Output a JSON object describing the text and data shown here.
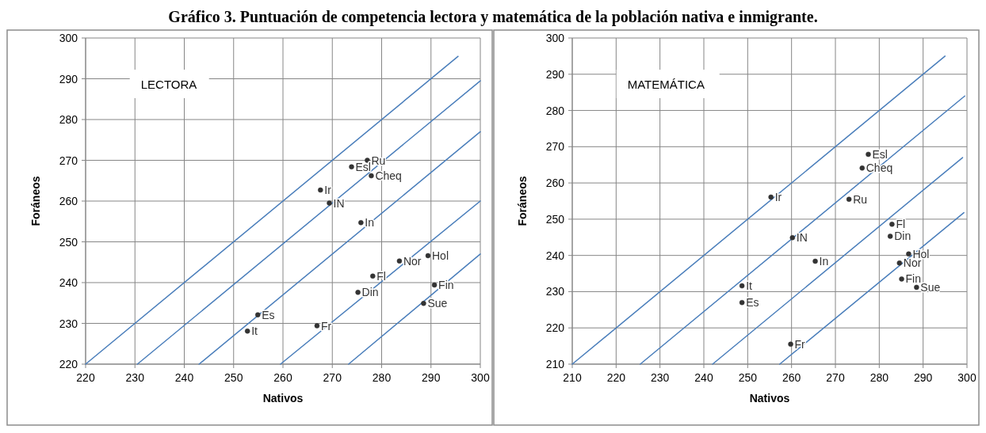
{
  "chart_data": [
    {
      "type": "scatter",
      "title": "Gráfico 3. Puntuación de competencia lectora y matemática de la población nativa e inmigrante.",
      "xlabel": "Nativos",
      "ylabel": "Foráneos",
      "annotations": [
        "LECTORA"
      ],
      "xlim": [
        220,
        300
      ],
      "ylim": [
        220,
        300
      ],
      "xticks": [
        220,
        230,
        240,
        250,
        260,
        270,
        280,
        290,
        300
      ],
      "yticks": [
        220,
        230,
        240,
        250,
        260,
        270,
        280,
        290,
        300
      ],
      "grid": true,
      "legend": false,
      "marker": "circle",
      "series": [
        {
          "type": "line",
          "marker": "none",
          "color": "#4a7ebb",
          "x": [
            220,
            295.5
          ],
          "values": [
            220,
            295.5
          ]
        },
        {
          "type": "line",
          "marker": "none",
          "color": "#4a7ebb",
          "x": [
            230.5,
            300
          ],
          "values": [
            220,
            289.5
          ]
        },
        {
          "type": "line",
          "marker": "none",
          "color": "#4a7ebb",
          "x": [
            243,
            300
          ],
          "values": [
            220,
            277
          ]
        },
        {
          "type": "line",
          "marker": "none",
          "color": "#4a7ebb",
          "x": [
            259.5,
            300
          ],
          "values": [
            220,
            260
          ]
        },
        {
          "type": "line",
          "marker": "none",
          "color": "#4a7ebb",
          "x": [
            273.3,
            300
          ],
          "values": [
            220,
            247
          ]
        },
        {
          "name": "Ru",
          "color": "#333333",
          "x": [
            277.1
          ],
          "values": [
            270.0
          ]
        },
        {
          "name": "Esl",
          "color": "#333333",
          "x": [
            273.9
          ],
          "values": [
            268.4
          ]
        },
        {
          "name": "Cheq",
          "color": "#333333",
          "x": [
            277.9
          ],
          "values": [
            266.2
          ]
        },
        {
          "name": "Ir",
          "color": "#333333",
          "x": [
            267.6
          ],
          "values": [
            262.7
          ]
        },
        {
          "name": "IN",
          "color": "#333333",
          "x": [
            269.4
          ],
          "values": [
            259.5
          ]
        },
        {
          "name": "In",
          "color": "#333333",
          "x": [
            275.8
          ],
          "values": [
            254.7
          ]
        },
        {
          "name": "Nor",
          "color": "#333333",
          "x": [
            283.6
          ],
          "values": [
            245.3
          ]
        },
        {
          "name": "Hol",
          "color": "#333333",
          "x": [
            289.4
          ],
          "values": [
            246.6
          ]
        },
        {
          "name": "Fl",
          "color": "#333333",
          "x": [
            278.2
          ],
          "values": [
            241.6
          ]
        },
        {
          "name": "Din",
          "color": "#333333",
          "x": [
            275.2
          ],
          "values": [
            237.6
          ]
        },
        {
          "name": "Fin",
          "color": "#333333",
          "x": [
            290.7
          ],
          "values": [
            239.4
          ]
        },
        {
          "name": "Sue",
          "color": "#333333",
          "x": [
            288.5
          ],
          "values": [
            234.9
          ]
        },
        {
          "name": "Es",
          "color": "#333333",
          "x": [
            254.9
          ],
          "values": [
            232.1
          ]
        },
        {
          "name": "It",
          "color": "#333333",
          "x": [
            252.8
          ],
          "values": [
            228.1
          ]
        },
        {
          "name": "Fr",
          "color": "#333333",
          "x": [
            266.9
          ],
          "values": [
            229.4
          ]
        }
      ]
    },
    {
      "type": "scatter",
      "xlabel": "Nativos",
      "ylabel": "Foráneos",
      "annotations": [
        "MATEMÁTICA"
      ],
      "xlim": [
        210,
        300
      ],
      "ylim": [
        210,
        300
      ],
      "xticks": [
        210,
        220,
        230,
        240,
        250,
        260,
        270,
        280,
        290,
        300
      ],
      "yticks": [
        210,
        220,
        230,
        240,
        250,
        260,
        270,
        280,
        290,
        300
      ],
      "grid": true,
      "legend": false,
      "marker": "circle",
      "series": [
        {
          "type": "line",
          "marker": "none",
          "color": "#4a7ebb",
          "x": [
            210,
            295
          ],
          "values": [
            210,
            295
          ]
        },
        {
          "type": "line",
          "marker": "none",
          "color": "#4a7ebb",
          "x": [
            225.5,
            299.5
          ],
          "values": [
            210,
            284
          ]
        },
        {
          "type": "line",
          "marker": "none",
          "color": "#4a7ebb",
          "x": [
            242,
            299
          ],
          "values": [
            210,
            267
          ]
        },
        {
          "type": "line",
          "marker": "none",
          "color": "#4a7ebb",
          "x": [
            257.3,
            299.3
          ],
          "values": [
            210,
            251.8
          ]
        },
        {
          "name": "Esl",
          "color": "#333333",
          "x": [
            277.5
          ],
          "values": [
            267.9
          ]
        },
        {
          "name": "Cheq",
          "color": "#333333",
          "x": [
            276.1
          ],
          "values": [
            264.1
          ]
        },
        {
          "name": "Ir",
          "color": "#333333",
          "x": [
            255.3
          ],
          "values": [
            256.1
          ]
        },
        {
          "name": "Ru",
          "color": "#333333",
          "x": [
            273.1
          ],
          "values": [
            255.5
          ]
        },
        {
          "name": "Fl",
          "color": "#333333",
          "x": [
            282.9
          ],
          "values": [
            248.6
          ]
        },
        {
          "name": "Din",
          "color": "#333333",
          "x": [
            282.5
          ],
          "values": [
            245.3
          ]
        },
        {
          "name": "IN",
          "color": "#333333",
          "x": [
            260.2
          ],
          "values": [
            244.9
          ]
        },
        {
          "name": "In",
          "color": "#333333",
          "x": [
            265.4
          ],
          "values": [
            238.4
          ]
        },
        {
          "name": "Hol",
          "color": "#333333",
          "x": [
            286.7
          ],
          "values": [
            240.4
          ]
        },
        {
          "name": "Nor",
          "color": "#333333",
          "x": [
            284.6
          ],
          "values": [
            237.9
          ]
        },
        {
          "name": "Fin",
          "color": "#333333",
          "x": [
            285.1
          ],
          "values": [
            233.5
          ]
        },
        {
          "name": "Sue",
          "color": "#333333",
          "x": [
            288.5
          ],
          "values": [
            231.2
          ]
        },
        {
          "name": "It",
          "color": "#333333",
          "x": [
            248.7
          ],
          "values": [
            231.6
          ]
        },
        {
          "name": "Es",
          "color": "#333333",
          "x": [
            248.7
          ],
          "values": [
            227.0
          ]
        },
        {
          "name": "Fr",
          "color": "#333333",
          "x": [
            259.8
          ],
          "values": [
            215.5
          ]
        }
      ]
    }
  ]
}
